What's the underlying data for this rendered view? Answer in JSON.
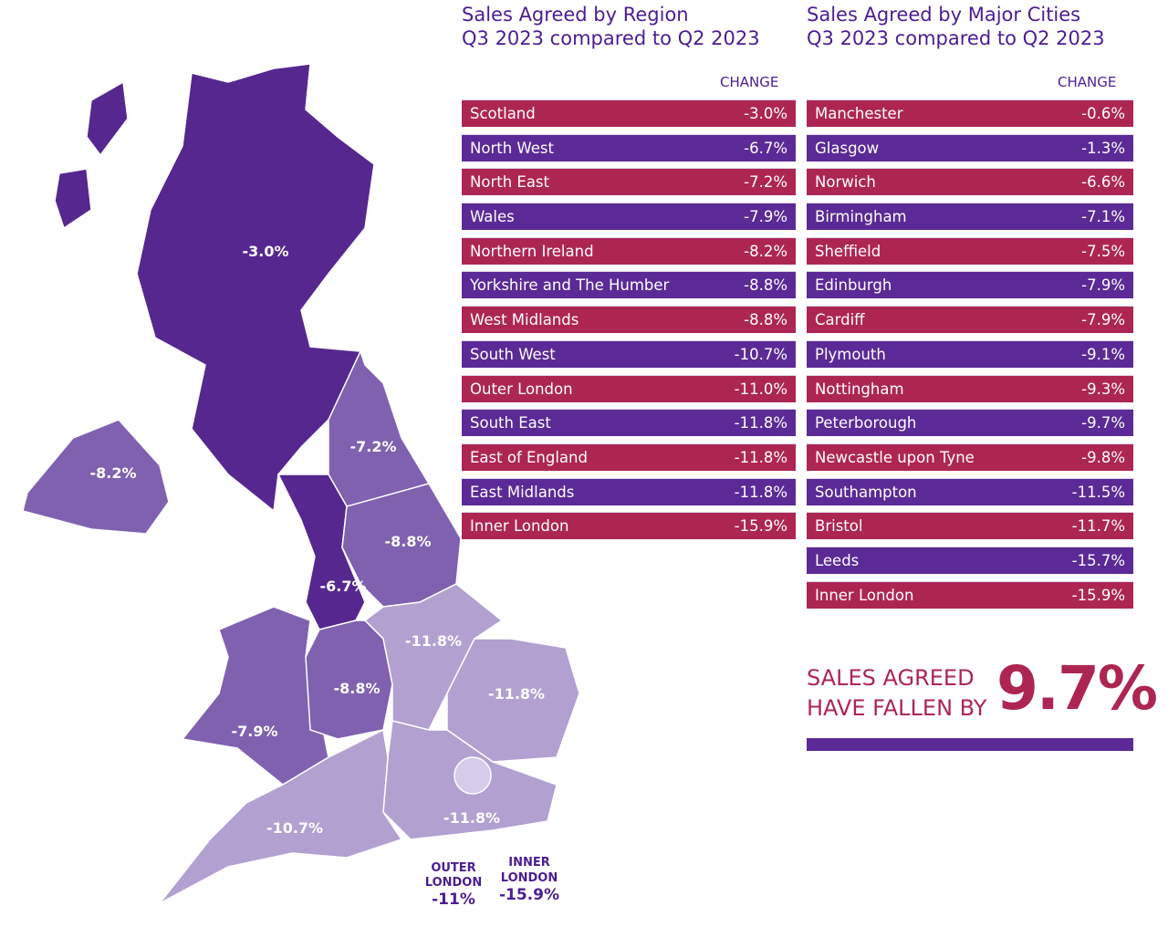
{
  "colors": {
    "red": "#ad2651",
    "purple": "#5b2a96",
    "map_dark": "#55278f",
    "map_medium": "#7f61b0",
    "map_light": "#b1a0d0",
    "map_lightest": "#d6cbe8"
  },
  "map": {
    "labels": {
      "scotland": "-3.0%",
      "northern_ireland": "-8.2%",
      "north_east": "-7.2%",
      "yorkshire": "-8.8%",
      "north_west": "-6.7%",
      "east_midlands": "-11.8%",
      "west_midlands": "-8.8%",
      "wales": "-7.9%",
      "east_of_england": "-11.8%",
      "south_east": "-11.8%",
      "south_west": "-10.7%"
    },
    "outer_london": {
      "line1": "OUTER",
      "line2": "LONDON",
      "value": "-11%"
    },
    "inner_london": {
      "line1": "INNER",
      "line2": "LONDON",
      "value": "-15.9%"
    }
  },
  "regions": {
    "title1": "Sales Agreed by Region",
    "title2": "Q3 2023 compared to Q2 2023",
    "change_header": "CHANGE",
    "rows": [
      {
        "name": "Scotland",
        "value": "-3.0%"
      },
      {
        "name": "North West",
        "value": "-6.7%"
      },
      {
        "name": "North East",
        "value": "-7.2%"
      },
      {
        "name": "Wales",
        "value": "-7.9%"
      },
      {
        "name": "Northern Ireland",
        "value": "-8.2%"
      },
      {
        "name": "Yorkshire and The Humber",
        "value": "-8.8%"
      },
      {
        "name": "West Midlands",
        "value": "-8.8%"
      },
      {
        "name": "South West",
        "value": "-10.7%"
      },
      {
        "name": "Outer London",
        "value": "-11.0%"
      },
      {
        "name": "South East",
        "value": "-11.8%"
      },
      {
        "name": "East of England",
        "value": "-11.8%"
      },
      {
        "name": "East Midlands",
        "value": "-11.8%"
      },
      {
        "name": "Inner London",
        "value": "-15.9%"
      }
    ]
  },
  "cities": {
    "title1": "Sales Agreed by Major Cities",
    "title2": "Q3 2023 compared to Q2 2023",
    "change_header": "CHANGE",
    "rows": [
      {
        "name": "Manchester",
        "value": "-0.6%"
      },
      {
        "name": "Glasgow",
        "value": "-1.3%"
      },
      {
        "name": "Norwich",
        "value": "-6.6%"
      },
      {
        "name": "Birmingham",
        "value": "-7.1%"
      },
      {
        "name": "Sheffield",
        "value": "-7.5%"
      },
      {
        "name": "Edinburgh",
        "value": "-7.9%"
      },
      {
        "name": "Cardiff",
        "value": "-7.9%"
      },
      {
        "name": "Plymouth",
        "value": "-9.1%"
      },
      {
        "name": "Nottingham",
        "value": "-9.3%"
      },
      {
        "name": "Peterborough",
        "value": "-9.7%"
      },
      {
        "name": "Newcastle upon Tyne",
        "value": "-9.8%"
      },
      {
        "name": "Southampton",
        "value": "-11.5%"
      },
      {
        "name": "Bristol",
        "value": "-11.7%"
      },
      {
        "name": "Leeds",
        "value": "-15.7%"
      },
      {
        "name": "Inner London",
        "value": "-15.9%"
      }
    ]
  },
  "summary": {
    "line1": "SALES AGREED",
    "line2": "HAVE FALLEN BY",
    "value": "9.7%"
  }
}
